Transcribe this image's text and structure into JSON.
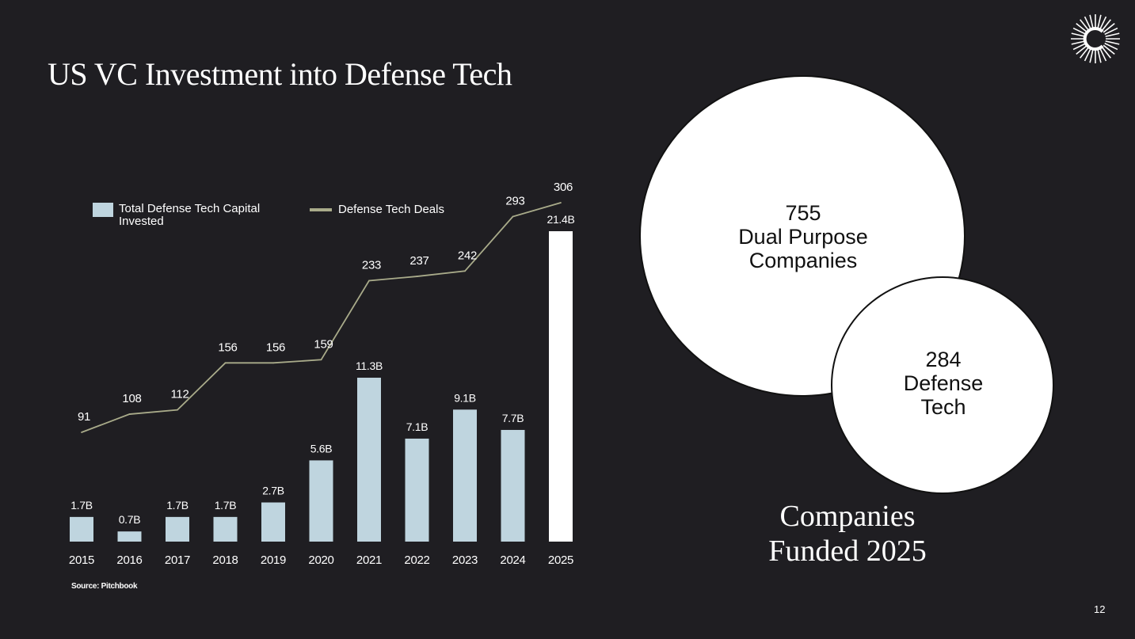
{
  "slide_title": "US VC Investment into Defense Tech",
  "colors": {
    "background": "#1f1e22",
    "bar": "#bfd5df",
    "bar_highlight": "#ffffff",
    "line": "#a9ab8a",
    "text": "#ffffff"
  },
  "legend": {
    "bars_label": "Total Defense Tech Capital Invested",
    "line_label": "Defense Tech Deals"
  },
  "chart_data": {
    "type": "bar",
    "title": "US VC Investment into Defense Tech",
    "xlabel": "",
    "ylabel": "",
    "grid": false,
    "legend_position": "top-left",
    "categories": [
      "2015",
      "2016",
      "2017",
      "2018",
      "2019",
      "2020",
      "2021",
      "2022",
      "2023",
      "2024",
      "2025"
    ],
    "series": [
      {
        "name": "Total Defense Tech Capital Invested",
        "type": "bar",
        "unit": "B",
        "values": [
          1.7,
          0.7,
          1.7,
          1.7,
          2.7,
          5.6,
          11.3,
          7.1,
          9.1,
          7.7,
          21.4
        ],
        "labels": [
          "1.7B",
          "0.7B",
          "1.7B",
          "1.7B",
          "2.7B",
          "5.6B",
          "11.3B",
          "7.1B",
          "9.1B",
          "7.7B",
          "21.4B"
        ]
      },
      {
        "name": "Defense Tech Deals",
        "type": "line",
        "values": [
          91,
          108,
          112,
          156,
          156,
          159,
          233,
          237,
          242,
          293,
          306
        ],
        "labels": [
          "91",
          "108",
          "112",
          "156",
          "156",
          "159",
          "233",
          "237",
          "242",
          "293",
          "306"
        ]
      }
    ]
  },
  "source": "Source: Pitchbook",
  "bubbles": {
    "dual": {
      "count": "755",
      "line1": "Dual Purpose",
      "line2": "Companies"
    },
    "defense": {
      "count": "284",
      "line1": "Defense",
      "line2": "Tech"
    }
  },
  "companies_caption": {
    "line1": "Companies",
    "line2": "Funded 2025"
  },
  "page_number": "12"
}
